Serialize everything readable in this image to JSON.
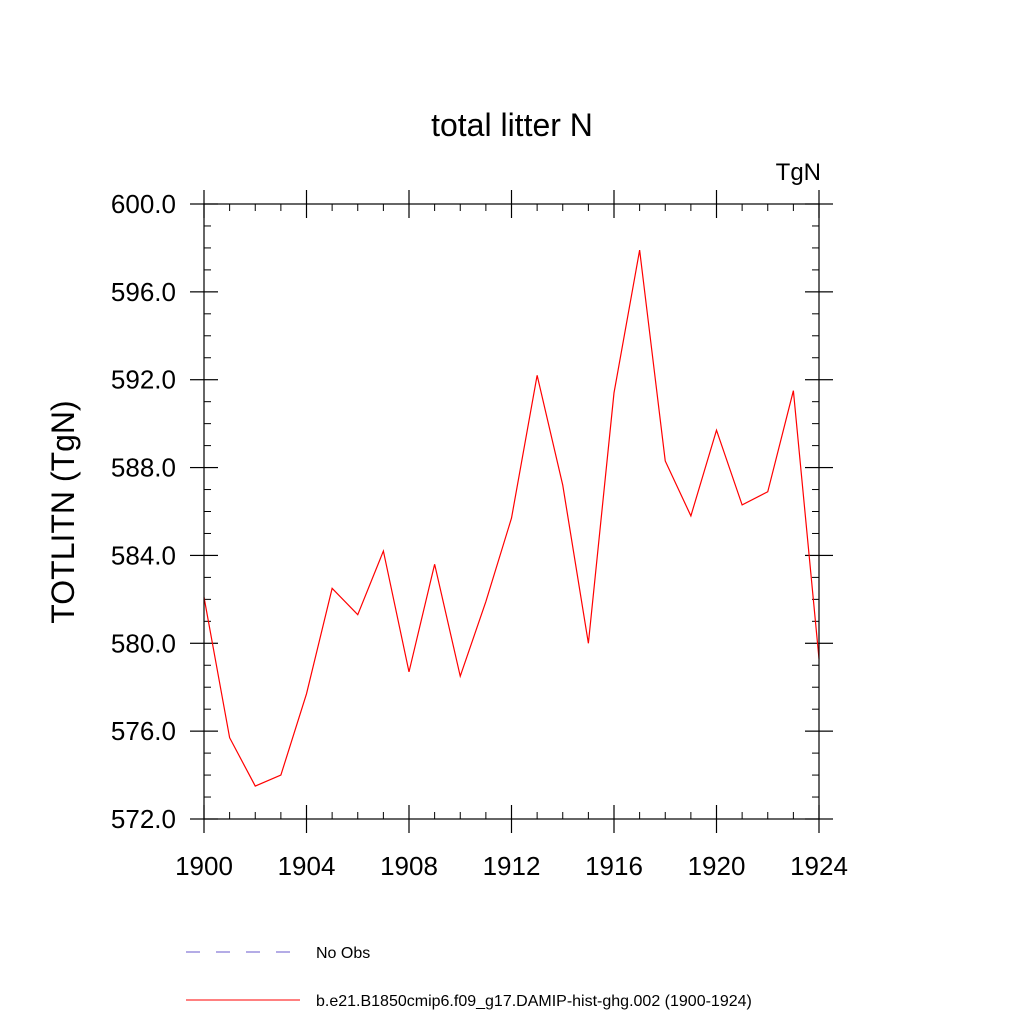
{
  "chart_data": {
    "type": "line",
    "title": "total litter N",
    "units_label": "TgN",
    "xlabel": "",
    "ylabel": "TOTLITN  (TgN)",
    "xlim": [
      1900,
      1924
    ],
    "ylim": [
      572,
      600
    ],
    "x_ticks": [
      1900,
      1904,
      1908,
      1912,
      1916,
      1920,
      1924
    ],
    "x_tick_labels": [
      "1900",
      "1904",
      "1908",
      "1912",
      "1916",
      "1920",
      "1924"
    ],
    "y_ticks": [
      572,
      576,
      580,
      584,
      588,
      592,
      596,
      600
    ],
    "y_tick_labels": [
      "572.0",
      "576.0",
      "580.0",
      "584.0",
      "588.0",
      "592.0",
      "596.0",
      "600.0"
    ],
    "x_minor_step": 1,
    "y_minor_step": 1,
    "grid": false,
    "legend_position": "bottom",
    "series": [
      {
        "name": "b.e21.B1850cmip6.f09_g17.DAMIP-hist-ghg.002 (1900-1924)",
        "color": "#ff0000",
        "style": "solid",
        "x": [
          1900,
          1901,
          1902,
          1903,
          1904,
          1905,
          1906,
          1907,
          1908,
          1909,
          1910,
          1911,
          1912,
          1913,
          1914,
          1915,
          1916,
          1917,
          1918,
          1919,
          1920,
          1921,
          1922,
          1923,
          1924
        ],
        "y": [
          582.1,
          575.7,
          573.5,
          574.0,
          577.7,
          582.5,
          581.3,
          584.2,
          578.7,
          583.6,
          578.5,
          581.9,
          585.7,
          592.2,
          587.2,
          580.0,
          591.4,
          597.9,
          588.3,
          585.8,
          589.7,
          586.3,
          586.9,
          591.5,
          579.3
        ]
      }
    ],
    "legend": [
      {
        "label": "No Obs",
        "color": "#6a5acd",
        "style": "dashed"
      },
      {
        "label": "b.e21.B1850cmip6.f09_g17.DAMIP-hist-ghg.002 (1900-1924)",
        "color": "#ff0000",
        "style": "solid"
      }
    ]
  }
}
